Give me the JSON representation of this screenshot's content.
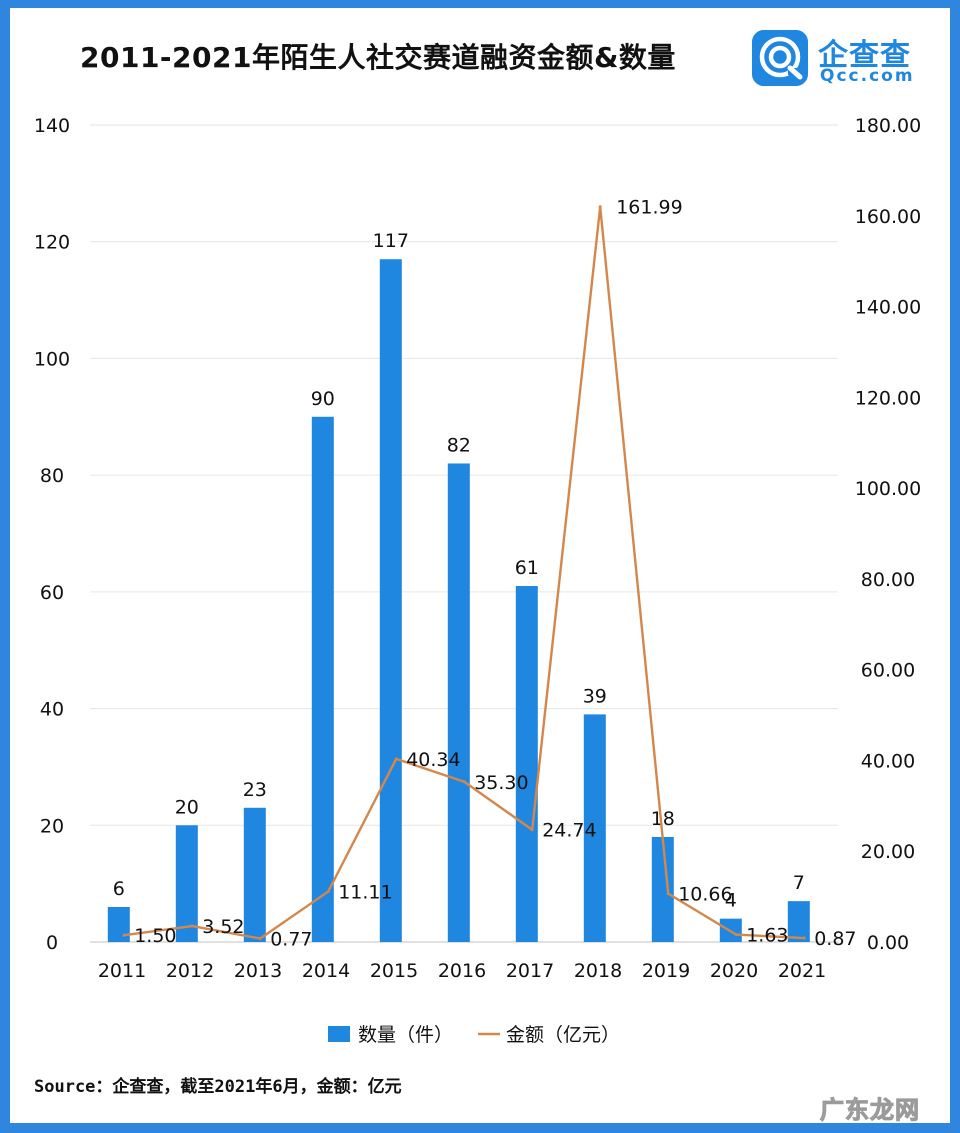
{
  "header": {
    "title": "2011-2021年陌生人社交赛道融资金额&数量"
  },
  "brand": {
    "name": "企查查",
    "url": "Qcc.com"
  },
  "footer": {
    "source": "Source：企查查，截至2021年6月，金额：亿元",
    "watermark": "广东龙网"
  },
  "colors": {
    "bar": "#1f87e0",
    "line": "#d4874b",
    "grid": "#e6e6e6",
    "frame": "#2e86de"
  },
  "chart_data": {
    "type": "bar+line",
    "title": "2011-2021年陌生人社交赛道融资金额&数量",
    "categories": [
      "2011",
      "2012",
      "2013",
      "2014",
      "2015",
      "2016",
      "2017",
      "2018",
      "2019",
      "2020",
      "2021"
    ],
    "series": [
      {
        "name": "数量（件）",
        "type": "bar",
        "axis": "left",
        "values": [
          6,
          20,
          23,
          90,
          117,
          82,
          61,
          39,
          18,
          4,
          7
        ],
        "labels": [
          "6",
          "20",
          "23",
          "90",
          "117",
          "82",
          "61",
          "39",
          "18",
          "4",
          "7"
        ]
      },
      {
        "name": "金额（亿元）",
        "type": "line",
        "axis": "right",
        "values": [
          1.5,
          3.52,
          0.77,
          11.11,
          40.34,
          35.3,
          24.74,
          161.99,
          10.66,
          1.63,
          0.87
        ],
        "labels": [
          "1.50",
          "3.52",
          "0.77",
          "11.11",
          "40.34",
          "35.30",
          "24.74",
          "161.99",
          "10.66",
          "1.63",
          "0.87"
        ]
      }
    ],
    "left_axis": {
      "min": 0,
      "max": 140,
      "ticks": [
        "0",
        "20",
        "40",
        "60",
        "80",
        "100",
        "120",
        "140"
      ]
    },
    "right_axis": {
      "min": 0,
      "max": 180,
      "ticks": [
        "0.00",
        "20.00",
        "40.00",
        "60.00",
        "80.00",
        "100.00",
        "120.00",
        "140.00",
        "160.00",
        "180.00"
      ]
    },
    "legend": {
      "position": "bottom",
      "items": [
        "数量（件）",
        "金额（亿元）"
      ]
    },
    "grid": true
  }
}
